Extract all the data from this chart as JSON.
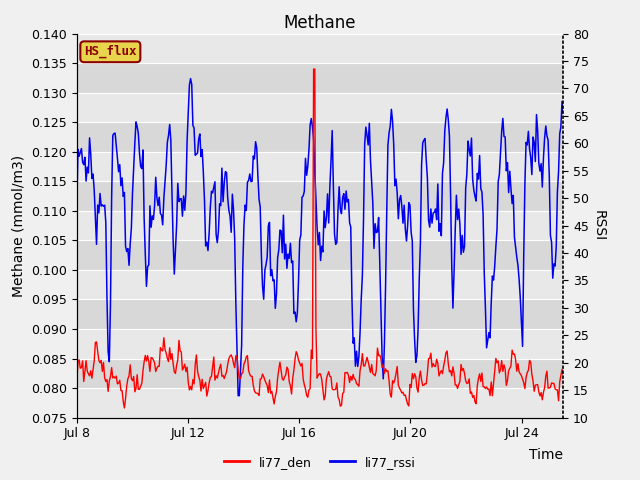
{
  "title": "Methane",
  "xlabel": "Time",
  "ylabel_left": "Methane (mmol/m3)",
  "ylabel_right": "RSSI",
  "ylim_left": [
    0.075,
    0.14
  ],
  "ylim_right": [
    10,
    80
  ],
  "xlim": [
    0,
    17.5
  ],
  "xtick_labels": [
    "Jul 8",
    "Jul 12",
    "Jul 16",
    "Jul 20",
    "Jul 24"
  ],
  "xtick_positions": [
    0,
    4,
    8,
    12,
    16
  ],
  "background_color": "#f0f0f0",
  "plot_bg_color": "#e8e8e8",
  "legend_box_label": "HS_flux",
  "legend_box_bg": "#e8d44d",
  "legend_box_edge": "#8b0000",
  "line_red_color": "#ff0000",
  "line_blue_color": "#0000ee",
  "line_red_label": "li77_den",
  "line_blue_label": "li77_rssi",
  "title_fontsize": 12,
  "axis_label_fontsize": 10,
  "tick_fontsize": 9,
  "band_light": "#e8e8e8",
  "band_dark": "#d8d8d8"
}
